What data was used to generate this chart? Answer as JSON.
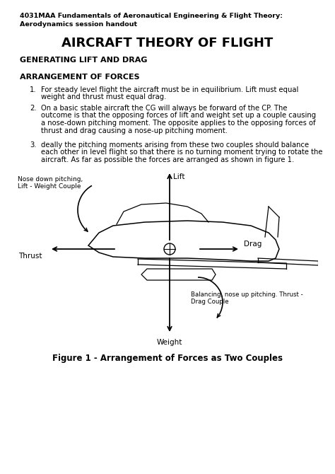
{
  "header_line1": "4031MAA Fundamentals of Aeronautical Engineering & Flight Theory:",
  "header_line2": "Aerodynamics session handout",
  "main_title": "AIRCRAFT THEORY OF FLIGHT",
  "section1": "GENERATING LIFT AND DRAG",
  "section2": "ARRANGEMENT OF FORCES",
  "item1_num": "1.",
  "item1": "For steady level flight the aircraft must be in equilibrium. Lift must equal\nweight and thrust must equal drag.",
  "item2_num": "2.",
  "item2_l1": "On a basic stable aircraft the CG will always be forward of the CP. The",
  "item2_l2": "outcome is that the opposing forces of lift and weight set up a couple causing",
  "item2_l3": "a nose-down pitching moment. The opposite applies to the opposing forces of",
  "item2_l4": "thrust and drag causing a nose-up pitching moment.",
  "item3_num": "3.",
  "item3_l1": "deally the pitching moments arising from these two couples should balance",
  "item3_l2": "each other in level flight so that there is no turning moment trying to rotate the",
  "item3_l3": "aircraft. As far as possible the forces are arranged as shown in figure 1.",
  "label_lift": "Lift",
  "label_weight": "Weight",
  "label_thrust": "Thrust",
  "label_drag": "Drag",
  "label_nose_down1": "Nose down pitching,",
  "label_nose_down2": "Lift - Weight Couple",
  "label_balancing1": "Balancing, nose up pitching. Thrust -",
  "label_balancing2": "Drag Couple",
  "figure_caption": "Figure 1 - Arrangement of Forces as Two Couples",
  "bg_color": "#ffffff",
  "text_color": "#000000"
}
